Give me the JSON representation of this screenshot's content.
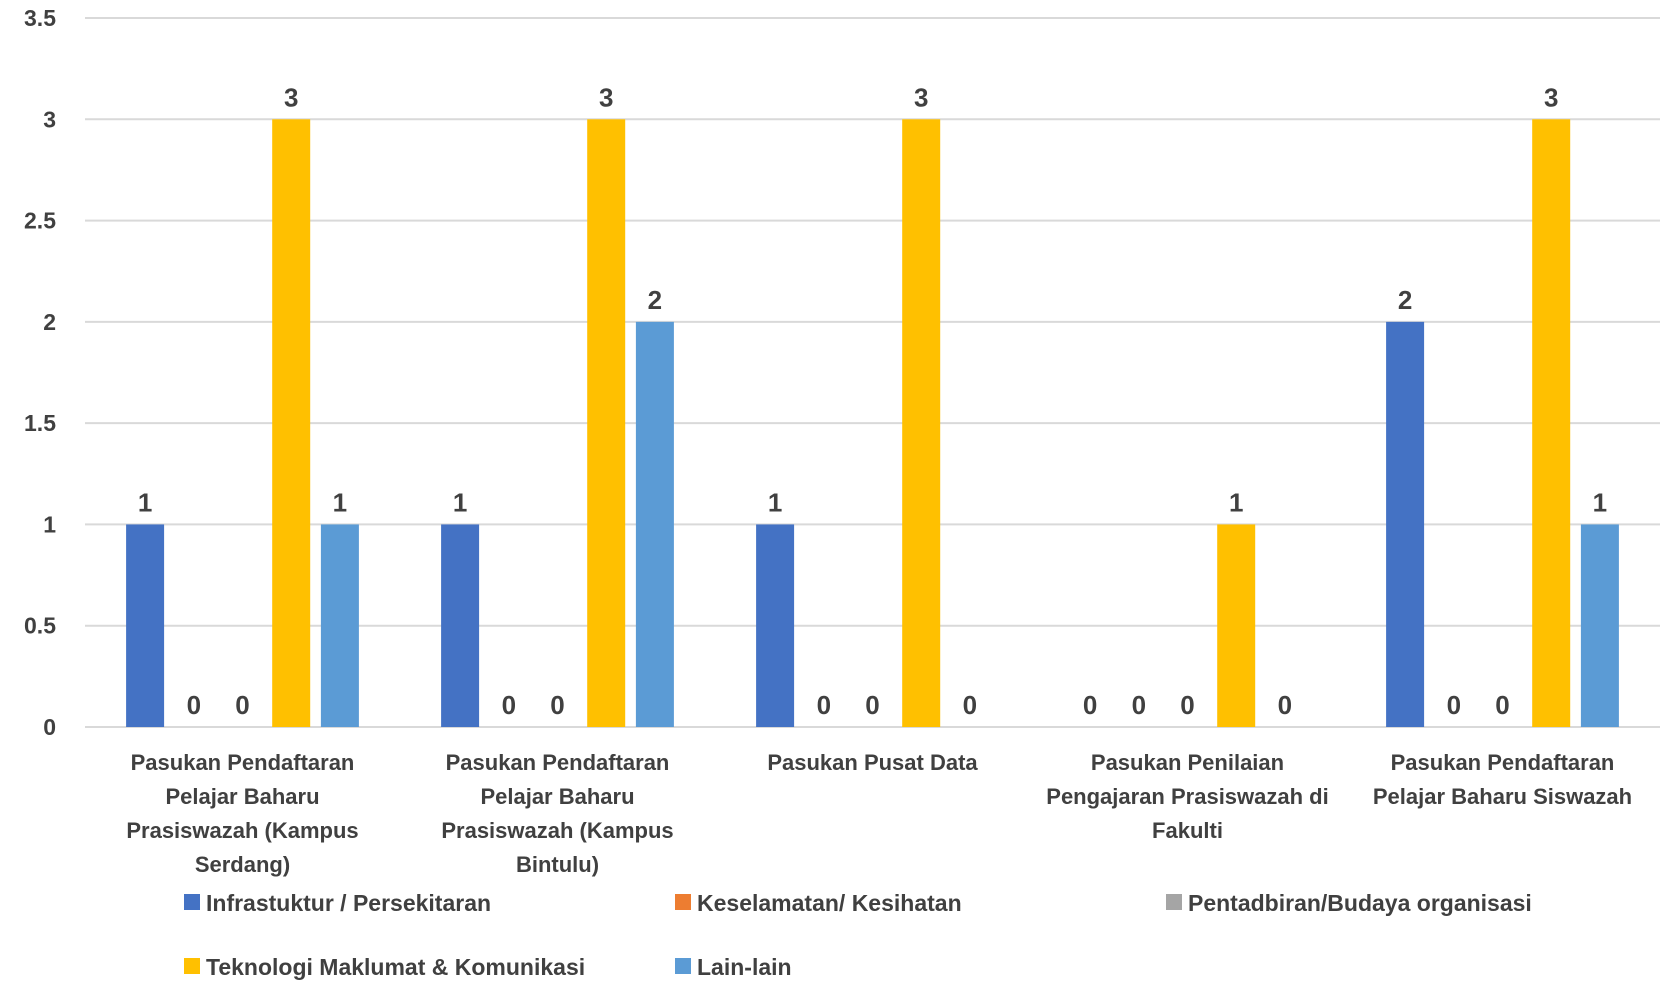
{
  "chart_data": {
    "type": "bar",
    "categories": [
      [
        "Pasukan Pendaftaran",
        "Pelajar Baharu",
        "Prasiswazah (Kampus",
        "Serdang)"
      ],
      [
        "Pasukan Pendaftaran",
        "Pelajar Baharu",
        "Prasiswazah (Kampus",
        "Bintulu)"
      ],
      [
        "Pasukan Pusat Data"
      ],
      [
        "Pasukan Penilaian",
        "Pengajaran Prasiswazah di",
        "Fakulti"
      ],
      [
        "Pasukan Pendaftaran",
        "Pelajar Baharu Siswazah"
      ]
    ],
    "series": [
      {
        "name": "Infrastuktur / Persekitaran",
        "color": "#4472C4",
        "values": [
          1,
          1,
          1,
          0,
          2
        ]
      },
      {
        "name": "Keselamatan/ Kesihatan",
        "color": "#ED7D31",
        "values": [
          0,
          0,
          0,
          0,
          0
        ]
      },
      {
        "name": "Pentadbiran/Budaya organisasi",
        "color": "#A5A5A5",
        "values": [
          0,
          0,
          0,
          0,
          0
        ]
      },
      {
        "name": "Teknologi Maklumat & Komunikasi",
        "color": "#FFC000",
        "values": [
          3,
          3,
          3,
          1,
          3
        ]
      },
      {
        "name": "Lain-lain",
        "color": "#5B9BD5",
        "values": [
          1,
          2,
          0,
          0,
          1
        ]
      }
    ],
    "y_ticks": [
      "0",
      "0.5",
      "1",
      "1.5",
      "2",
      "2.5",
      "3",
      "3.5"
    ],
    "ylim": [
      0,
      3.5
    ],
    "grid": true,
    "data_labels": true,
    "legend_position": "bottom"
  }
}
